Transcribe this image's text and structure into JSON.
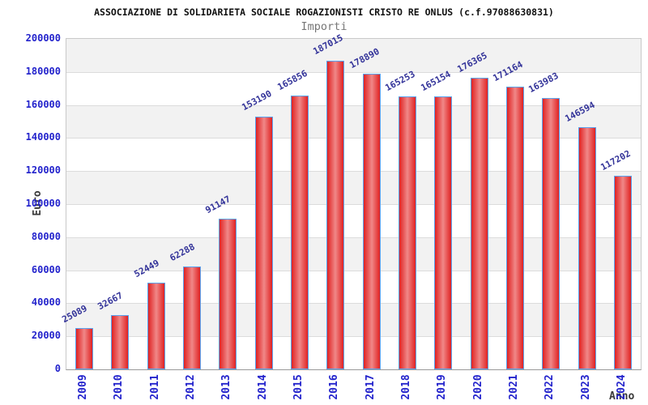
{
  "chart_data": {
    "type": "bar",
    "title": "ASSOCIAZIONE DI SOLIDARIETA SOCIALE ROGAZIONISTI CRISTO RE ONLUS (c.f.97088630831)",
    "subtitle": "Importi",
    "xlabel": "Anno",
    "ylabel": "Euro",
    "categories": [
      "2009",
      "2010",
      "2011",
      "2012",
      "2013",
      "2014",
      "2015",
      "2016",
      "2017",
      "2018",
      "2019",
      "2020",
      "2021",
      "2022",
      "2023",
      "2024"
    ],
    "values": [
      25089,
      32667,
      52449,
      62288,
      91147,
      153190,
      165856,
      187015,
      178890,
      165253,
      165154,
      176365,
      171164,
      163983,
      146594,
      117202
    ],
    "ylim": [
      0,
      200000
    ],
    "ytick_step": 20000,
    "grid": true,
    "legend_position": "none",
    "colors": {
      "bar_edge": "#e02222",
      "bar_center": "#f08888",
      "bar_border": "#5aa3f0",
      "tick_label": "#2323cc",
      "value_label": "#333399",
      "band": "#f2f2f2",
      "band_alt": "#ffffff",
      "gridline": "#dcdcdc",
      "plot_border": "#c9c9c9",
      "axis_line": "#999999",
      "title": "#111111",
      "subtitle": "#777777",
      "axis_title": "#3a3a3a"
    }
  }
}
